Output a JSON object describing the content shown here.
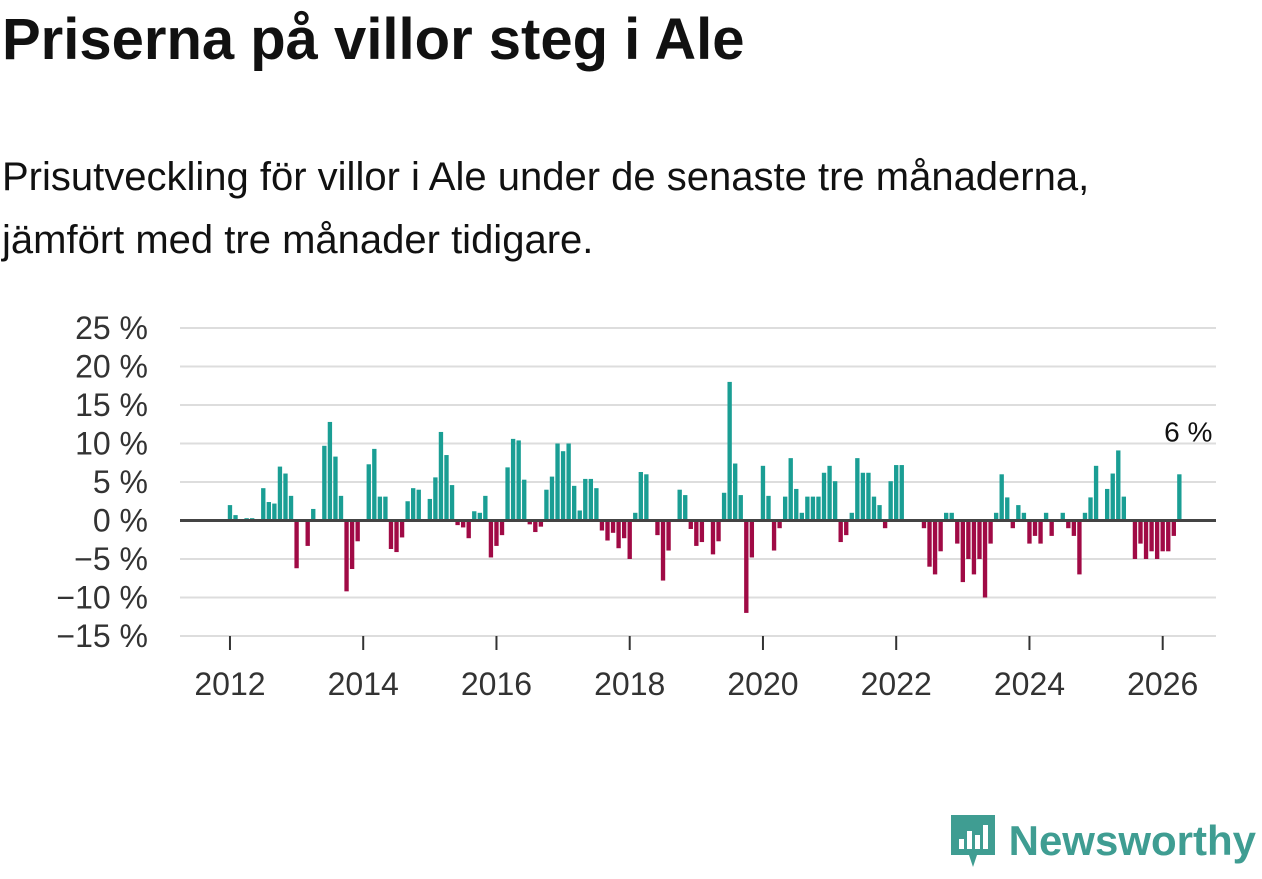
{
  "title": "Priserna på villor steg i Ale",
  "subtitle": "Prisutveckling för villor i Ale under de senaste tre månaderna, jämfört med tre månader tidigare.",
  "brand": "Newsworthy",
  "colors": {
    "positive": "#1a9e94",
    "negative": "#a00a45",
    "grid": "#dddddd",
    "zero": "#444444",
    "brand": "#3f9d92"
  },
  "chart_data": {
    "type": "bar",
    "title": "Priserna på villor steg i Ale",
    "xlabel": "",
    "ylabel": "",
    "ylim": [
      -15,
      25
    ],
    "yticks": [
      25,
      20,
      15,
      10,
      5,
      0,
      -5,
      -10,
      -15
    ],
    "ytick_labels": [
      "25 %",
      "20 %",
      "15 %",
      "10 %",
      "5 %",
      "0 %",
      "−5 %",
      "−10 %",
      "−15 %"
    ],
    "xticks": [
      2012,
      2014,
      2016,
      2018,
      2020,
      2022,
      2024,
      2026
    ],
    "xtick_labels": [
      "2012",
      "2014",
      "2016",
      "2018",
      "2020",
      "2022",
      "2024",
      "2026"
    ],
    "xlim": [
      2011.25,
      2026.8
    ],
    "start": "2012-01",
    "values": [
      2,
      0.7,
      0,
      0.3,
      0.3,
      0,
      4.2,
      2.4,
      2.2,
      7,
      6.1,
      3.2,
      -6.2,
      0,
      -3.3,
      1.5,
      0,
      9.7,
      12.8,
      8.3,
      3.2,
      -9.2,
      -6.3,
      -2.7,
      0,
      7.3,
      9.3,
      3.1,
      3.1,
      -3.7,
      -4.1,
      -2.2,
      2.5,
      4.2,
      4.0,
      0,
      2.8,
      5.6,
      11.5,
      8.5,
      4.6,
      -0.6,
      -0.9,
      -2.3,
      1.2,
      1.0,
      3.2,
      -4.8,
      -3.3,
      -1.9,
      6.9,
      10.6,
      10.4,
      5.3,
      -0.5,
      -1.5,
      -0.8,
      4.0,
      5.7,
      10,
      9,
      10,
      4.5,
      1.3,
      5.4,
      5.4,
      4.2,
      -1.3,
      -2.6,
      -1.6,
      -3.6,
      -2.3,
      -5.0,
      1.0,
      6.3,
      6.0,
      0,
      -1.9,
      -7.8,
      -3.9,
      0,
      4.0,
      3.3,
      -1.1,
      -3.3,
      -2.8,
      0,
      -4.4,
      -2.7,
      3.6,
      18,
      7.4,
      3.3,
      -12,
      -4.8,
      0,
      7.1,
      3.2,
      -3.9,
      -1.0,
      3.1,
      8.1,
      4.1,
      1.0,
      3.1,
      3.1,
      3.1,
      6.2,
      7.1,
      5.1,
      -2.8,
      -1.9,
      1.0,
      8.1,
      6.2,
      6.2,
      3.1,
      2.0,
      -1.0,
      5.1,
      7.2,
      7.2,
      0,
      0,
      0,
      -1.0,
      -6.0,
      -7.0,
      -4.0,
      1.0,
      1.0,
      -3.0,
      -8.0,
      -5.0,
      -7.0,
      -5.0,
      -10.0,
      -3.0,
      1.0,
      6.0,
      3.0,
      -1.0,
      2.0,
      1.0,
      -3.0,
      -2.0,
      -3.0,
      1.0,
      -2.0,
      0,
      1.0,
      -1.0,
      -2.0,
      -7.0,
      1.0,
      3.0,
      7.1,
      0,
      4.1,
      6.1,
      9.1,
      3.1,
      0,
      -5.0,
      -3.0,
      -5.0,
      -4.0,
      -5.0,
      -4.0,
      -4.0,
      -2.0,
      6.0
    ],
    "annotation": {
      "text": "6 %",
      "value": 6
    }
  }
}
